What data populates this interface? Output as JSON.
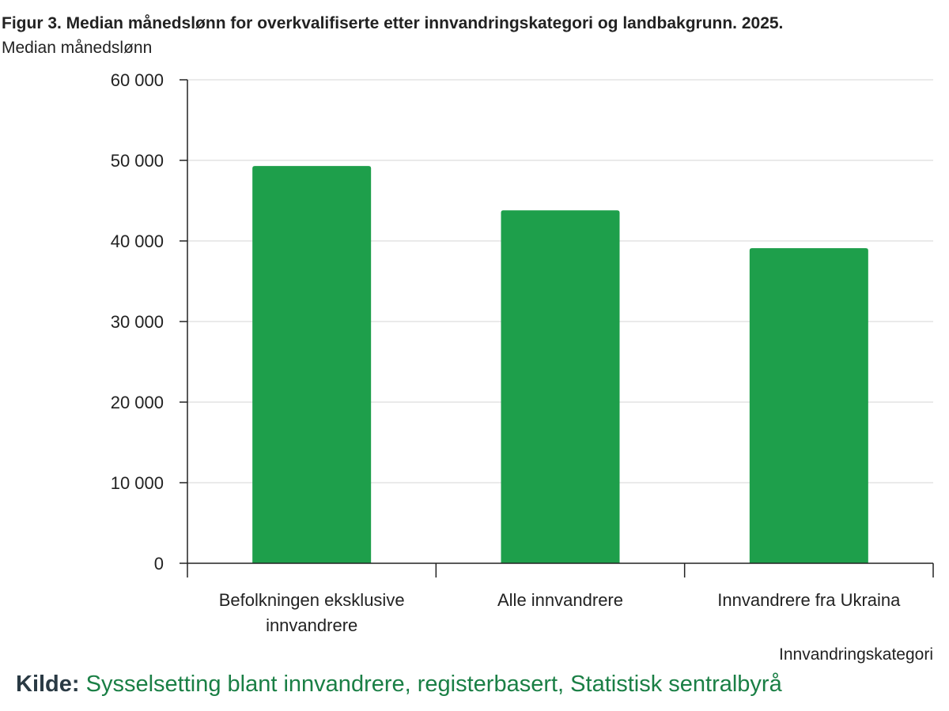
{
  "chart_data": {
    "type": "bar",
    "title": "Figur 3. Median månedslønn for overkvalifiserte etter innvandringskategori og landbakgrunn. 2025.",
    "ylabel": "Median månedslønn",
    "xlabel": "Innvandringskategori",
    "categories": [
      [
        "Befolkningen eksklusive",
        "innvandrere"
      ],
      [
        "Alle innvandrere"
      ],
      [
        "Innvandrere fra Ukraina"
      ]
    ],
    "values": [
      49300,
      43800,
      39100
    ],
    "ylim": [
      0,
      60000
    ],
    "yticks": [
      0,
      10000,
      20000,
      30000,
      40000,
      50000,
      60000
    ],
    "ytick_labels": [
      "0",
      "10 000",
      "20 000",
      "30 000",
      "40 000",
      "50 000",
      "60 000"
    ],
    "grid": true,
    "bar_color": "#1e9f4b"
  },
  "source": {
    "label": "Kilde:",
    "text": "Sysselsetting blant innvandrere, registerbasert, Statistisk sentralbyrå"
  },
  "colors": {
    "bar": "#1e9f4b",
    "grid": "#e3e3e3",
    "axis": "#222222",
    "source_link": "#1a7f45"
  }
}
